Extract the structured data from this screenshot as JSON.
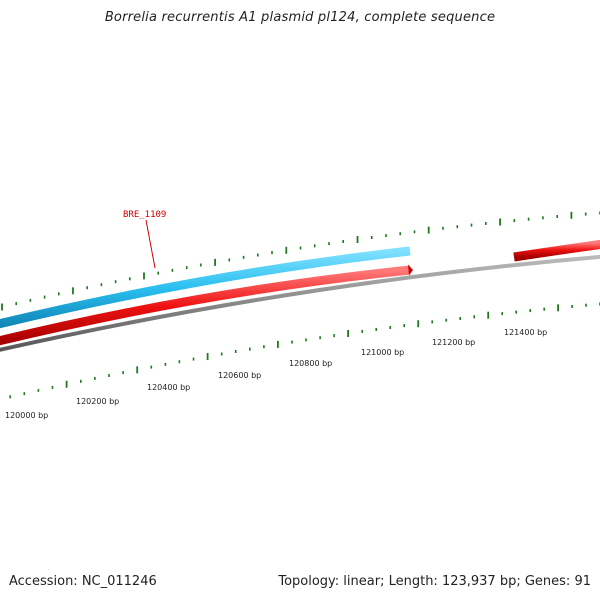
{
  "title": "Borrelia recurrentis A1 plasmid pl124, complete sequence",
  "footer": {
    "accession": "Accession: NC_011246",
    "summary": "Topology: linear; Length: 123,937 bp; Genes: 91"
  },
  "scale": {
    "unit": "bp",
    "labeled_positions": [
      120000,
      120200,
      120400,
      120600,
      120800,
      121000,
      121200,
      121400
    ],
    "labels": [
      "120000 bp",
      "120200 bp",
      "120400 bp",
      "120600 bp",
      "120800 bp",
      "121000 bp",
      "121200 bp",
      "121400 bp"
    ]
  },
  "features": [
    {
      "name": "BRE_1109",
      "label": "BRE_1109",
      "strand": "forward",
      "type": "CDS"
    },
    {
      "name": "gene-reverse-1",
      "strand": "reverse",
      "type": "gene"
    },
    {
      "name": "gene-reverse-2",
      "strand": "reverse",
      "type": "gene"
    }
  ],
  "colors": {
    "cds": "#29bfef",
    "gene": "#ee1111",
    "backbone": "#888888",
    "ticks": "#1f7a1f",
    "label": "#cc0000"
  }
}
